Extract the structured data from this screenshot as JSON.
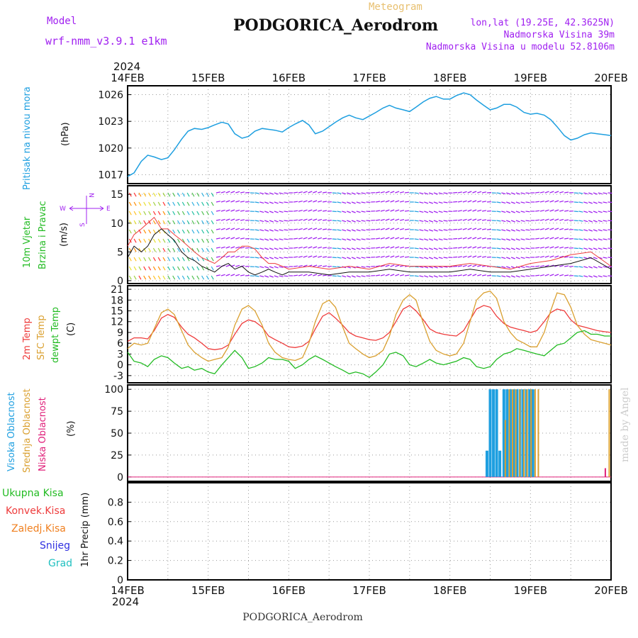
{
  "header": {
    "model_label": "Model",
    "model_name": "wrf-nmm_v3.9.1 e1km",
    "kind": "Meteogram",
    "station": "PODGORICA_Aerodrom",
    "lonlat": "lon,lat (19.25E, 42.3625N)",
    "elevation": "Nadmorska Visina 39m",
    "model_elevation": "Nadmorska Visina u modelu 52.8106m"
  },
  "footer": {
    "station": "PODGORICA_Aerodrom",
    "credit": "made by Angel"
  },
  "colors": {
    "pressure": "#1E9FE0",
    "temp2m": "#EE3B3B",
    "sfc": "#DAA030",
    "dew": "#22BB22",
    "purple": "#A020F0",
    "high_cloud": "#1E9FE0",
    "mid_cloud": "#DAA030",
    "low_cloud": "#E0207A",
    "total_precip": "#22BB22",
    "conv_precip": "#EE3B3B",
    "frz_precip": "#F08020",
    "snow": "#3030E0",
    "hail": "#20C0C0"
  },
  "chart_data": [
    {
      "type": "line",
      "panel": "pressure",
      "ylabel_1": "Pritisak na nivou mora",
      "ylabel_2": "(hPa)",
      "x_ticks": [
        "14FEB",
        "15FEB",
        "16FEB",
        "17FEB",
        "18FEB",
        "19FEB",
        "20FEB"
      ],
      "year": "2024",
      "ylim": [
        1016,
        1027
      ],
      "y_ticks": [
        "1017",
        "1020",
        "1023",
        "1026"
      ],
      "grid": true,
      "x_days": [
        0,
        0.08,
        0.17,
        0.25,
        0.33,
        0.42,
        0.5,
        0.58,
        0.67,
        0.75,
        0.83,
        0.92,
        1.0,
        1.08,
        1.17,
        1.25,
        1.33,
        1.42,
        1.5,
        1.58,
        1.67,
        1.75,
        1.83,
        1.92,
        2.0,
        2.08,
        2.17,
        2.25,
        2.33,
        2.42,
        2.5,
        2.58,
        2.67,
        2.75,
        2.83,
        2.92,
        3.0,
        3.08,
        3.17,
        3.25,
        3.33,
        3.42,
        3.5,
        3.58,
        3.67,
        3.75,
        3.83,
        3.92,
        4.0,
        4.08,
        4.17,
        4.25,
        4.33,
        4.42,
        4.5,
        4.58,
        4.67,
        4.75,
        4.83,
        4.92,
        5.0,
        5.08,
        5.17,
        5.25,
        5.33,
        5.42,
        5.5,
        5.58,
        5.67,
        5.75,
        5.83,
        5.92,
        6.0
      ],
      "values": [
        1016.8,
        1017.2,
        1018.5,
        1019.2,
        1019.0,
        1018.7,
        1018.9,
        1019.8,
        1021.0,
        1021.9,
        1022.2,
        1022.1,
        1022.3,
        1022.6,
        1022.9,
        1022.7,
        1021.6,
        1021.1,
        1021.3,
        1021.9,
        1022.2,
        1022.1,
        1022.0,
        1021.8,
        1022.3,
        1022.7,
        1023.1,
        1022.6,
        1021.6,
        1021.9,
        1022.4,
        1022.9,
        1023.4,
        1023.7,
        1023.4,
        1023.2,
        1023.6,
        1024.0,
        1024.5,
        1024.8,
        1024.5,
        1024.3,
        1024.1,
        1024.6,
        1025.2,
        1025.6,
        1025.8,
        1025.5,
        1025.5,
        1025.9,
        1026.2,
        1026.0,
        1025.4,
        1024.8,
        1024.3,
        1024.5,
        1024.9,
        1024.9,
        1024.6,
        1024.0,
        1023.8,
        1023.9,
        1023.7,
        1023.2,
        1022.4,
        1021.4,
        1020.9,
        1021.1,
        1021.5,
        1021.7,
        1021.6,
        1021.5,
        1021.4
      ]
    },
    {
      "type": "line",
      "panel": "wind",
      "ylabel_1": "10m Vjetar",
      "ylabel_2": "Brzina i Pravac",
      "ylabel_3": "(m/s)",
      "compass": {
        "w": "W",
        "e": "E",
        "n": "N",
        "s": "S"
      },
      "ylim": [
        -0.5,
        16.5
      ],
      "y_ticks": [
        "0",
        "5",
        "10",
        "15"
      ],
      "grid": true,
      "x_days": [
        0,
        0.08,
        0.17,
        0.25,
        0.33,
        0.42,
        0.5,
        0.58,
        0.67,
        0.75,
        0.83,
        0.92,
        1.0,
        1.08,
        1.17,
        1.25,
        1.33,
        1.42,
        1.5,
        1.58,
        1.67,
        1.75,
        1.83,
        1.92,
        2.0,
        2.25,
        2.5,
        2.75,
        3.0,
        3.25,
        3.5,
        3.75,
        4.0,
        4.25,
        4.5,
        4.75,
        5.0,
        5.25,
        5.5,
        5.75,
        6.0
      ],
      "speed": [
        4,
        6,
        5,
        6,
        8,
        9,
        8,
        7,
        5,
        4,
        3.5,
        2.5,
        2,
        1.5,
        2.5,
        3,
        2,
        2.5,
        1.5,
        1,
        1.5,
        2,
        1.5,
        1,
        1.5,
        1.5,
        1,
        1.5,
        1.5,
        2,
        1.5,
        1.5,
        1.5,
        2,
        1.5,
        1.5,
        2,
        2.5,
        3,
        4,
        2
      ],
      "gust": [
        6,
        8,
        9,
        10,
        11,
        9,
        9,
        8,
        7,
        6,
        5,
        4,
        3.5,
        3,
        4,
        5,
        5,
        6,
        6,
        5.5,
        4,
        3,
        3,
        2.5,
        2,
        2.5,
        2,
        2.5,
        2,
        3,
        2.5,
        2.5,
        2.5,
        3,
        2.5,
        2,
        3,
        3.5,
        4.5,
        5,
        2.5
      ]
    },
    {
      "type": "line",
      "panel": "temperature",
      "ylabel_1": "2m Temp",
      "ylabel_2": "SFC Temp",
      "ylabel_3": "dewpt Temp",
      "ylabel_4": "(C)",
      "ylim": [
        -5,
        22
      ],
      "y_ticks": [
        "-3",
        "0",
        "3",
        "6",
        "9",
        "12",
        "15",
        "18",
        "21"
      ],
      "grid": true,
      "x_days": [
        0,
        0.08,
        0.17,
        0.25,
        0.33,
        0.42,
        0.5,
        0.58,
        0.67,
        0.75,
        0.83,
        0.92,
        1.0,
        1.08,
        1.17,
        1.25,
        1.33,
        1.42,
        1.5,
        1.58,
        1.67,
        1.75,
        1.83,
        1.92,
        2.0,
        2.08,
        2.17,
        2.25,
        2.33,
        2.42,
        2.5,
        2.58,
        2.67,
        2.75,
        2.83,
        2.92,
        3.0,
        3.08,
        3.17,
        3.25,
        3.33,
        3.42,
        3.5,
        3.58,
        3.67,
        3.75,
        3.83,
        3.92,
        4.0,
        4.08,
        4.17,
        4.25,
        4.33,
        4.42,
        4.5,
        4.58,
        4.67,
        4.75,
        4.83,
        4.92,
        5.0,
        5.08,
        5.17,
        5.25,
        5.33,
        5.42,
        5.5,
        5.58,
        5.67,
        5.75,
        5.83,
        5.92,
        6.0
      ],
      "series": [
        {
          "key": "temp2m",
          "values": [
            6.5,
            7.5,
            7.5,
            7.2,
            9.5,
            13.0,
            14.0,
            13.2,
            10.5,
            8.5,
            7.5,
            6.0,
            4.5,
            4.2,
            4.5,
            5.5,
            8.5,
            11.5,
            12.5,
            12.0,
            10.5,
            8.0,
            7.0,
            6.0,
            5.0,
            4.8,
            5.2,
            6.5,
            10.0,
            13.5,
            14.5,
            13.0,
            11.0,
            9.0,
            8.0,
            7.5,
            7.0,
            6.8,
            7.5,
            9.0,
            12.0,
            15.5,
            16.5,
            15.0,
            12.5,
            10.0,
            9.0,
            8.5,
            8.2,
            8.0,
            9.5,
            12.5,
            15.5,
            16.5,
            16.0,
            13.5,
            11.5,
            10.5,
            10.0,
            9.5,
            9.0,
            9.5,
            12.0,
            14.5,
            15.5,
            15.0,
            12.5,
            11.0,
            10.5,
            10.0,
            9.5,
            9.2,
            9.0
          ]
        },
        {
          "key": "sfc",
          "values": [
            4.5,
            6.0,
            5.5,
            6.0,
            10.0,
            14.5,
            15.5,
            14.0,
            9.5,
            5.5,
            3.5,
            2.0,
            1.0,
            1.5,
            2.0,
            5.0,
            11.0,
            15.5,
            16.5,
            15.0,
            11.0,
            6.0,
            3.5,
            2.0,
            1.5,
            1.2,
            2.0,
            6.0,
            12.0,
            17.0,
            18.0,
            16.0,
            10.5,
            6.0,
            4.5,
            3.0,
            2.0,
            2.5,
            4.0,
            8.0,
            14.0,
            18.0,
            19.5,
            18.0,
            11.5,
            6.5,
            4.0,
            3.0,
            2.5,
            3.0,
            6.0,
            12.0,
            18.0,
            20.0,
            20.5,
            18.5,
            12.0,
            9.0,
            7.0,
            6.0,
            5.0,
            5.0,
            9.0,
            15.0,
            20.0,
            19.5,
            16.0,
            11.0,
            8.5,
            7.0,
            6.5,
            6.0,
            5.5
          ]
        },
        {
          "key": "dew",
          "values": [
            3.5,
            1.0,
            0.5,
            -0.5,
            1.5,
            2.5,
            2.0,
            0.5,
            -1.0,
            -0.5,
            -1.5,
            -1.0,
            -2.0,
            -2.5,
            0.0,
            2.0,
            4.0,
            2.0,
            -1.0,
            -0.5,
            0.5,
            2.0,
            1.5,
            1.5,
            1.0,
            -1.0,
            0.0,
            1.5,
            2.5,
            1.5,
            0.5,
            -0.5,
            -1.5,
            -2.5,
            -2.0,
            -2.5,
            -3.5,
            -2.0,
            0.0,
            3.0,
            3.5,
            2.5,
            0.0,
            -0.5,
            0.5,
            1.5,
            0.5,
            0.0,
            0.5,
            1.0,
            2.0,
            1.5,
            -0.5,
            -1.0,
            -0.5,
            1.5,
            3.0,
            3.5,
            4.5,
            4.0,
            3.5,
            3.0,
            2.5,
            4.0,
            5.5,
            6.0,
            7.5,
            9.0,
            9.5,
            8.5,
            8.5,
            8.0,
            8.0
          ]
        }
      ]
    },
    {
      "type": "bar",
      "panel": "clouds",
      "ylabel_1": "Visoka Oblacnost",
      "ylabel_2": "Srednja Oblacnost",
      "ylabel_3": "Niska Oblacnost",
      "ylabel_4": "(%)",
      "ylim": [
        -5,
        105
      ],
      "y_ticks": [
        "0",
        "25",
        "50",
        "75",
        "100"
      ],
      "grid": true,
      "high_x": [
        4.46,
        4.5,
        4.54,
        4.58,
        4.62,
        4.67,
        4.71,
        4.75,
        4.79,
        4.83,
        4.87,
        4.91,
        4.95,
        4.99,
        5.03
      ],
      "high_values": [
        30,
        100,
        100,
        100,
        30,
        100,
        100,
        100,
        100,
        100,
        100,
        100,
        100,
        100,
        100
      ],
      "mid_x": [
        4.67,
        4.72,
        4.76,
        4.8,
        4.85,
        4.9,
        4.94,
        4.99,
        5.04,
        5.08,
        5.96
      ],
      "mid_values": [
        65,
        100,
        100,
        100,
        100,
        100,
        100,
        100,
        100,
        100,
        100
      ],
      "low_x": [
        5.92
      ],
      "low_values": [
        10
      ]
    },
    {
      "type": "bar",
      "panel": "precip",
      "ylabel_1": "1hr Precip (mm)",
      "legend": [
        "Ukupna Kisa",
        "Konvek.Kisa",
        "Zaledj.Kisa",
        "Snijeg",
        "Grad"
      ],
      "ylim": [
        0,
        1.0
      ],
      "y_ticks": [
        "0",
        "0.2",
        "0.4",
        "0.6",
        "0.8"
      ],
      "grid": true,
      "values": []
    }
  ]
}
